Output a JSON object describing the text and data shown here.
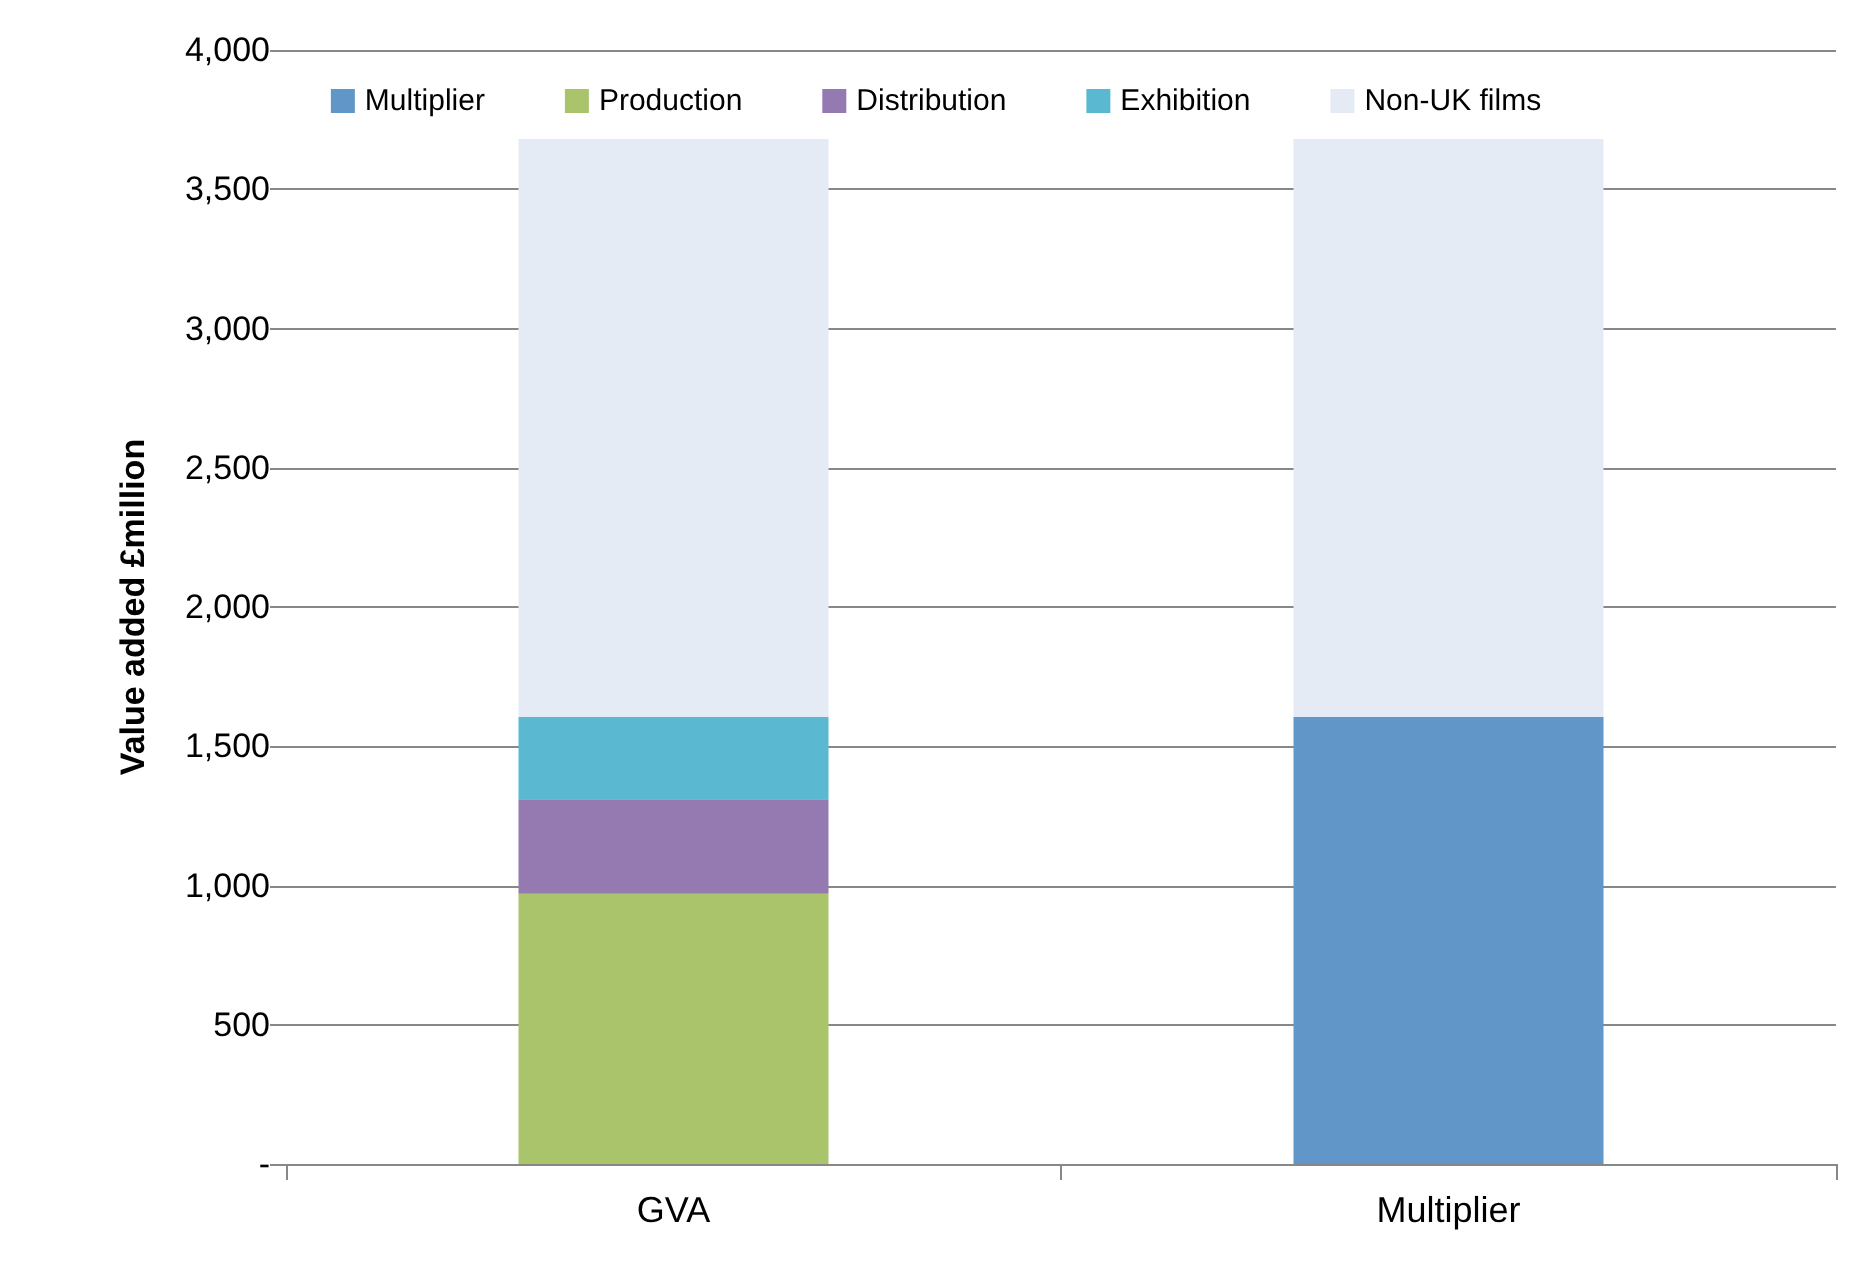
{
  "chart_data": {
    "type": "bar",
    "stacked": true,
    "ylabel": "Value added £million",
    "categories": [
      "GVA",
      "Multiplier"
    ],
    "series": [
      {
        "name": "Multiplier",
        "color": "#6096c8",
        "values": [
          null,
          1605
        ]
      },
      {
        "name": "Production",
        "color": "#aac46c",
        "values": [
          970,
          null
        ]
      },
      {
        "name": "Distribution",
        "color": "#947ab0",
        "values": [
          340,
          null
        ]
      },
      {
        "name": "Exhibition",
        "color": "#5ab9d0",
        "values": [
          295,
          null
        ]
      },
      {
        "name": "Non-UK films",
        "color": "#e4ebf4",
        "values": [
          2075,
          2075
        ]
      }
    ],
    "ylim": [
      0,
      4000
    ],
    "yticks": [
      {
        "value": 0,
        "label": "-"
      },
      500,
      {
        "value": 1000,
        "label": "1,000"
      },
      {
        "value": 1500,
        "label": "1,500"
      },
      {
        "value": 2000,
        "label": "2,000"
      },
      {
        "value": 2500,
        "label": "2,500"
      },
      {
        "value": 3000,
        "label": "3,000"
      },
      {
        "value": 3500,
        "label": "3,500"
      },
      {
        "value": 4000,
        "label": "4,000"
      }
    ],
    "grid": "y",
    "legend": "top"
  }
}
